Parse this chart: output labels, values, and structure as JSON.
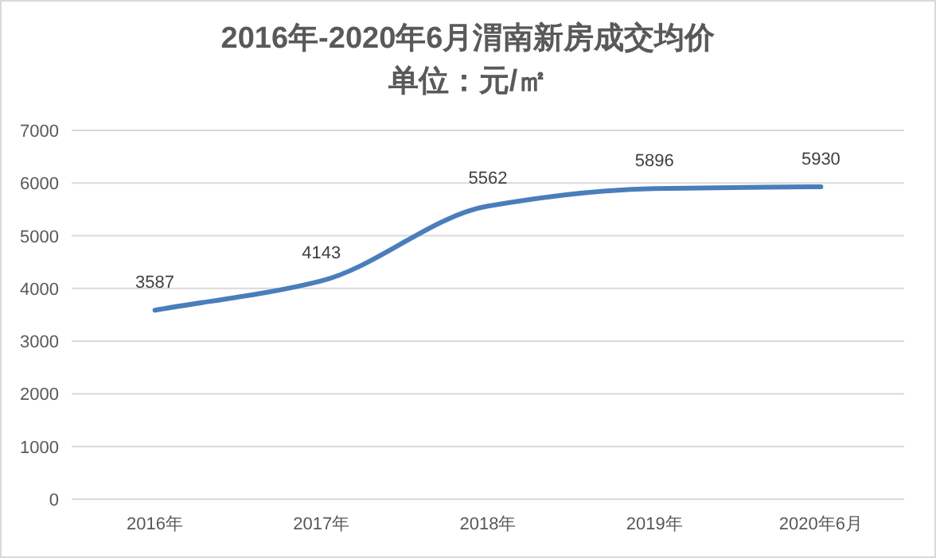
{
  "chart_data": {
    "type": "line",
    "title": "2016年-2020年6月渭南新房成交均价",
    "subtitle": "单位：元/㎡",
    "categories": [
      "2016年",
      "2017年",
      "2018年",
      "2019年",
      "2020年6月"
    ],
    "series": [
      {
        "color": "#4a7ebb",
        "values": [
          3587,
          4143,
          5562,
          5896,
          5930
        ]
      }
    ],
    "ylim": [
      0,
      7000
    ],
    "yticks": [
      0,
      1000,
      2000,
      3000,
      4000,
      5000,
      6000,
      7000
    ],
    "grid": "y",
    "data_labels": true
  }
}
